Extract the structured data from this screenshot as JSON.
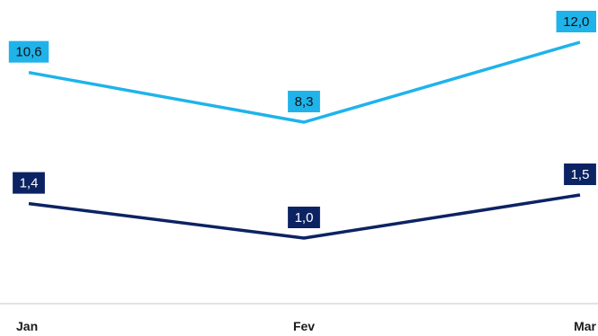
{
  "chart_data": {
    "type": "line",
    "categories": [
      "Jan",
      "Fev",
      "Mar"
    ],
    "series": [
      {
        "values": [
          10.6,
          8.3,
          12.0
        ],
        "labels": [
          "10,6",
          "8,3",
          "12,0"
        ],
        "color": "#1fb3ea",
        "label_text_color": "#111111"
      },
      {
        "values": [
          1.4,
          1.0,
          1.5
        ],
        "labels": [
          "1,4",
          "1,0",
          "1,5"
        ],
        "color": "#0c2363",
        "label_text_color": "#ffffff"
      }
    ],
    "legend": "none",
    "grid": false,
    "axis_color": "#d9d9d9"
  }
}
